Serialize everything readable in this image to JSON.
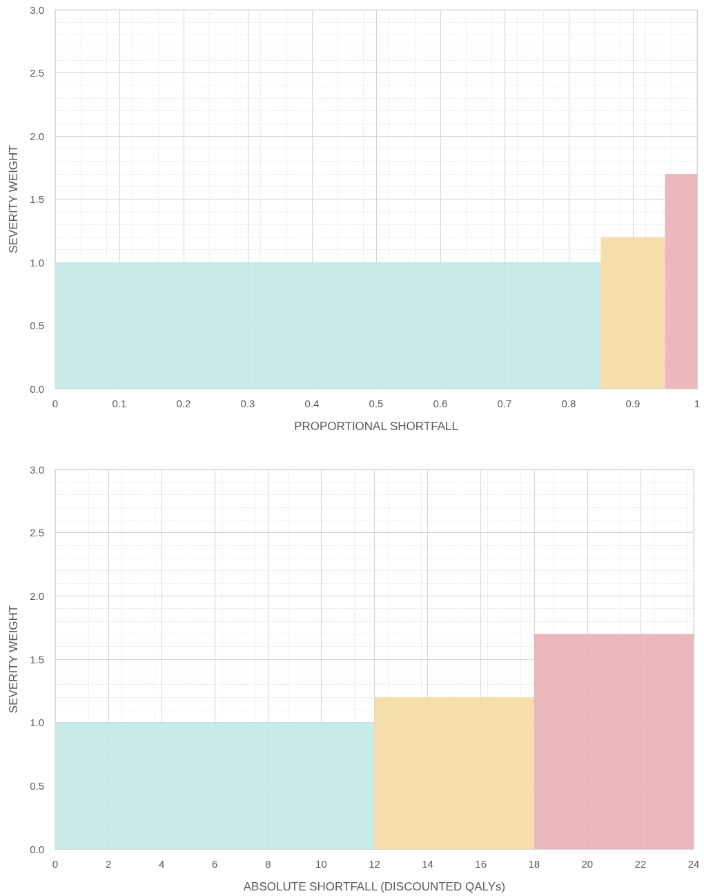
{
  "chart_data": [
    {
      "type": "histogram",
      "xlabel": "PROPORTIONAL SHORTFALL",
      "ylabel": "SEVERITY WEIGHT",
      "bins": [
        0,
        0.85,
        0.95,
        1
      ],
      "values": [
        1.0,
        1.2,
        1.7
      ],
      "colors": [
        "#c0e9e5",
        "#f6dca4",
        "#e8b0b6"
      ],
      "xlim": [
        0,
        1
      ],
      "xticks": [
        0,
        0.1,
        0.2,
        0.3,
        0.4,
        0.5,
        0.6,
        0.7,
        0.8,
        0.9,
        1
      ],
      "ylim": [
        0,
        3
      ],
      "yticks": [
        {
          "value": 0,
          "label": "0.0"
        },
        0.5,
        {
          "value": 1,
          "label": "1.0"
        },
        1.5,
        {
          "value": 2,
          "label": "2.0"
        },
        2.5,
        {
          "value": 3,
          "label": "3.0"
        }
      ],
      "grid": true
    },
    {
      "type": "histogram",
      "xlabel": "ABSOLUTE SHORTFALL (DISCOUNTED QALYs)",
      "ylabel": "SEVERITY WEIGHT",
      "bins": [
        0,
        12,
        18,
        24
      ],
      "values": [
        1.0,
        1.2,
        1.7
      ],
      "colors": [
        "#c0e9e5",
        "#f6dca4",
        "#e8b0b6"
      ],
      "xlim": [
        0,
        24
      ],
      "xticks": [
        0,
        2,
        4,
        6,
        8,
        10,
        12,
        14,
        16,
        18,
        20,
        22,
        24
      ],
      "ylim": [
        0,
        3
      ],
      "yticks": [
        {
          "value": 0,
          "label": "0.0"
        },
        0.5,
        {
          "value": 1,
          "label": "1.0"
        },
        1.5,
        {
          "value": 2,
          "label": "2.0"
        },
        2.5,
        {
          "value": 3,
          "label": "3.0"
        }
      ],
      "grid": true
    }
  ]
}
